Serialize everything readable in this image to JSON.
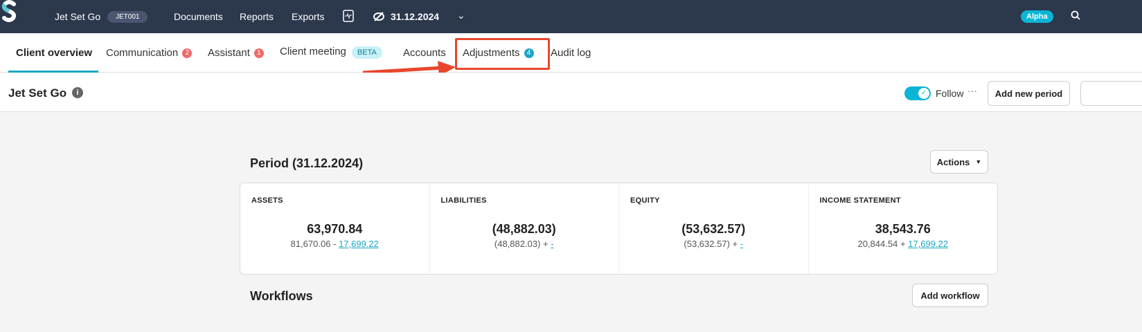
{
  "topbar": {
    "client": "Jet Set Go",
    "client_code": "JET001",
    "nav": [
      "Documents",
      "Reports",
      "Exports"
    ],
    "date": "31.12.2024",
    "env_badge": "Alpha"
  },
  "tabs": [
    {
      "label": "Client overview"
    },
    {
      "label": "Communication",
      "badge": "2"
    },
    {
      "label": "Assistant",
      "badge": "1"
    },
    {
      "label": "Client meeting",
      "tag": "BETA"
    },
    {
      "label": "Accounts"
    },
    {
      "label": "Adjustments",
      "badge": "4"
    },
    {
      "label": "Audit log"
    }
  ],
  "header": {
    "title": "Jet Set Go",
    "follow_label": "Follow",
    "follow_on": true,
    "add_period": "Add new period"
  },
  "period": {
    "title": "Period (31.12.2024)",
    "actions": "Actions",
    "cards": [
      {
        "label": "ASSETS",
        "value": "63,970.84",
        "base": "81,670.06",
        "op": "-",
        "adj": "17,699.22"
      },
      {
        "label": "LIABILITIES",
        "value": "(48,882.03)",
        "base": "(48,882.03)",
        "op": "+",
        "adj": "-"
      },
      {
        "label": "EQUITY",
        "value": "(53,632.57)",
        "base": "(53,632.57)",
        "op": "+",
        "adj": "-"
      },
      {
        "label": "INCOME STATEMENT",
        "value": "38,543.76",
        "base": "20,844.54",
        "op": "+",
        "adj": "17,699.22"
      }
    ]
  },
  "workflows": {
    "title": "Workflows",
    "add": "Add workflow"
  },
  "colors": {
    "topbar": "#2c384c",
    "accent": "#1aa6c4",
    "highlight": "#e8472d"
  }
}
